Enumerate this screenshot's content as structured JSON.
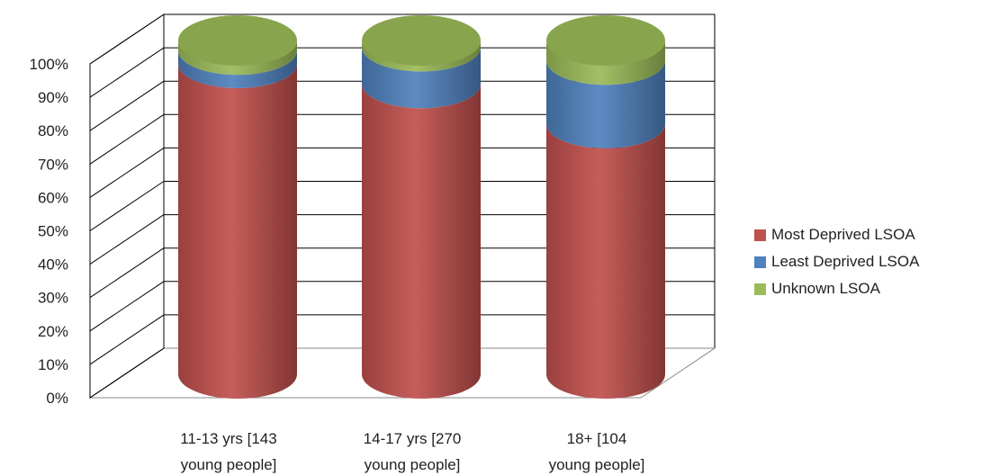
{
  "chart_data": {
    "type": "bar",
    "style": "stacked-100-cylinder-3d",
    "categories": [
      [
        "11-13 yrs [143",
        "young people]"
      ],
      [
        "14-17  yrs [270",
        "young people]"
      ],
      [
        "18+ [104",
        "young people]"
      ]
    ],
    "series": [
      {
        "name": "Most Deprived LSOA",
        "values": [
          93,
          87,
          75
        ]
      },
      {
        "name": "Least Deprived LSOA",
        "values": [
          4,
          11,
          19
        ]
      },
      {
        "name": "Unknown LSOA",
        "values": [
          3,
          2,
          6
        ]
      }
    ],
    "yticks": [
      "0%",
      "10%",
      "20%",
      "30%",
      "40%",
      "50%",
      "60%",
      "70%",
      "80%",
      "90%",
      "100%"
    ],
    "ylim": [
      0,
      100
    ],
    "grid": true,
    "legend_position": "right",
    "colors": {
      "Most Deprived LSOA": "#c0504d",
      "Least Deprived LSOA": "#4f81bd",
      "Unknown LSOA": "#9bbb59"
    }
  }
}
